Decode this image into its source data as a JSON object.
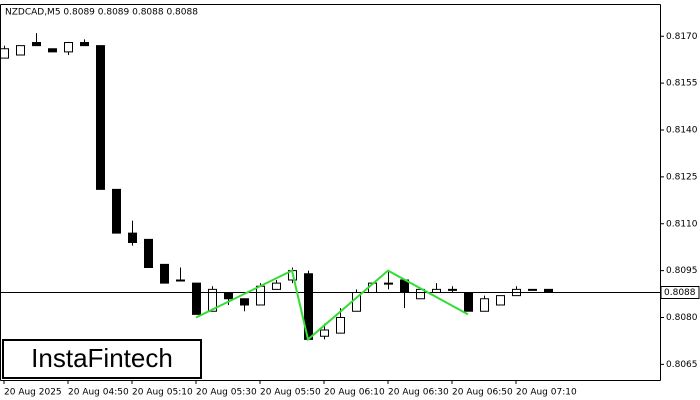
{
  "chart_data": {
    "type": "candlestick",
    "title": "NZDCAD,M5  0.8089 0.8089 0.8088 0.8088",
    "watermark": "InstaFintech",
    "categories": [
      "20 Aug 2025",
      null,
      null,
      null,
      "20 Aug 04:50",
      null,
      null,
      null,
      "20 Aug 05:10",
      null,
      null,
      null,
      "20 Aug 05:30",
      null,
      null,
      null,
      "20 Aug 05:50",
      null,
      null,
      null,
      "20 Aug 06:10",
      null,
      null,
      null,
      "20 Aug 06:30",
      null,
      null,
      null,
      "20 Aug 06:50",
      null,
      null,
      null,
      "20 Aug 07:10",
      null,
      null
    ],
    "open": [
      0.8163,
      0.8164,
      0.8168,
      0.8166,
      0.8165,
      0.8168,
      0.8167,
      0.8121,
      0.8107,
      0.8105,
      0.8097,
      0.8092,
      0.8091,
      0.8082,
      0.8088,
      0.8086,
      0.8084,
      0.8089,
      0.8092,
      0.8094,
      0.8074,
      0.8075,
      0.8082,
      0.8088,
      0.8091,
      0.8092,
      0.8086,
      0.8088,
      0.8089,
      0.8088,
      0.8082,
      0.8084,
      0.8087,
      0.8089,
      0.8089
    ],
    "high": [
      0.8167,
      0.8167,
      0.8171,
      0.8166,
      0.8168,
      0.8169,
      0.8167,
      0.8121,
      0.8111,
      0.8105,
      0.8097,
      0.8096,
      0.8091,
      0.809,
      0.8088,
      0.8086,
      0.8091,
      0.8092,
      0.8096,
      0.8095,
      0.8078,
      0.8083,
      0.8089,
      0.8091,
      0.8095,
      0.8092,
      0.8089,
      0.8091,
      0.809,
      0.8088,
      0.8087,
      0.8087,
      0.809,
      0.8089,
      0.8089
    ],
    "low": [
      0.8163,
      0.8164,
      0.8167,
      0.8165,
      0.8164,
      0.8167,
      0.8121,
      0.8107,
      0.8103,
      0.8096,
      0.8091,
      0.8092,
      0.8081,
      0.8082,
      0.8084,
      0.8082,
      0.8084,
      0.8089,
      0.8091,
      0.8073,
      0.8073,
      0.8075,
      0.8082,
      0.8088,
      0.8089,
      0.8083,
      0.8086,
      0.8088,
      0.8088,
      0.8082,
      0.8082,
      0.8084,
      0.8087,
      0.8089,
      0.8088
    ],
    "close": [
      0.8166,
      0.8167,
      0.8167,
      0.8165,
      0.8168,
      0.8167,
      0.8121,
      0.8107,
      0.8104,
      0.8096,
      0.8091,
      0.8092,
      0.8081,
      0.8089,
      0.8086,
      0.8084,
      0.809,
      0.8091,
      0.8095,
      0.8073,
      0.8076,
      0.808,
      0.8088,
      0.8091,
      0.8091,
      0.8088,
      0.8089,
      0.8089,
      0.8089,
      0.8082,
      0.8086,
      0.8087,
      0.8089,
      0.8089,
      0.8088
    ],
    "up_color": "#ffffff",
    "down_color": "#000000",
    "ylim": [
      0.806,
      0.818
    ],
    "yticks": [
      0.8065,
      {
        "value": 0.808,
        "label": "0.8080"
      },
      0.8095,
      {
        "value": 0.811,
        "label": "0.8110"
      },
      0.8125,
      {
        "value": 0.814,
        "label": "0.8140"
      },
      0.8155,
      {
        "value": 0.817,
        "label": "0.8170"
      }
    ],
    "last_price": 0.8088,
    "pattern_line": {
      "color": "#33dd33",
      "x": [
        12,
        18,
        19,
        24,
        29
      ],
      "values": [
        0.808,
        0.8095,
        0.8073,
        0.8095,
        0.8081
      ]
    }
  }
}
